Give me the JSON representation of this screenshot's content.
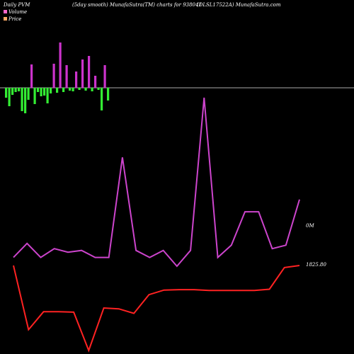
{
  "header": {
    "left": "Daily PVM",
    "mid": "(5day smooth) MunafaSutra(TM) charts for 938041",
    "right": "(DLSL17522A) MunafaSutra.com"
  },
  "legend": [
    {
      "name": "Volume",
      "color": "#ff66cc"
    },
    {
      "name": "Price",
      "color": "#ffaa66"
    }
  ],
  "colors": {
    "bar_up": "#cc33cc",
    "bar_down": "#33ee33",
    "bar_alert": "#ff2222",
    "volume_line": "#cc44cc",
    "price_line": "#ff2222",
    "zero_line": "#aaaaaa"
  },
  "chart_data": {
    "type": "line",
    "bars": [
      -14,
      -26,
      -10,
      -6,
      -5,
      -33,
      -36,
      -17,
      33,
      -23,
      -6,
      -12,
      -11,
      -22,
      -8,
      34,
      -7,
      64,
      -6,
      32,
      -4,
      -5,
      23,
      -3,
      40,
      -4,
      45,
      -5,
      17,
      -3,
      -32,
      32,
      -18
    ],
    "volume": {
      "label": "0M",
      "values": [
        -2.7,
        -0.3,
        -2.7,
        -1.2,
        -1.8,
        -1.5,
        -2.7,
        -2.7,
        14.4,
        -1.5,
        -2.7,
        -1.5,
        -4.2,
        -1.5,
        24.6,
        -2.7,
        -0.6,
        5.1,
        5.1,
        -1.2,
        -0.6,
        7.2
      ]
    },
    "price": {
      "label": "1825.80",
      "values": [
        1825.8,
        1810.4,
        1814.7,
        1814.7,
        1814.6,
        1805.4,
        1815.6,
        1815.4,
        1814.3,
        1818.8,
        1819.9,
        1820.0,
        1820.0,
        1819.8,
        1819.8,
        1819.8,
        1819.8,
        1820.1,
        1825.3,
        1825.8
      ]
    }
  }
}
